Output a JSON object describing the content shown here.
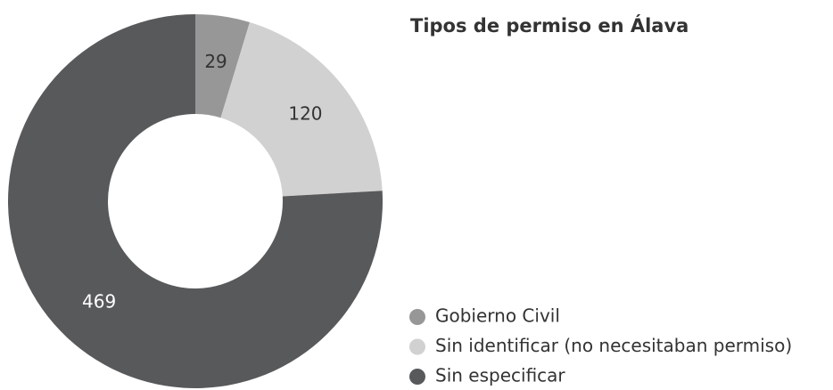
{
  "chart_data": {
    "type": "donut",
    "title": "Tipos de permiso en Álava",
    "categories": [
      "Gobierno Civil",
      "Sin identificar (no necesitaban permiso)",
      "Sin especificar"
    ],
    "values": [
      29,
      120,
      469
    ],
    "colors": [
      "#979797",
      "#d1d1d1",
      "#58595b"
    ],
    "legend": "lower right"
  }
}
